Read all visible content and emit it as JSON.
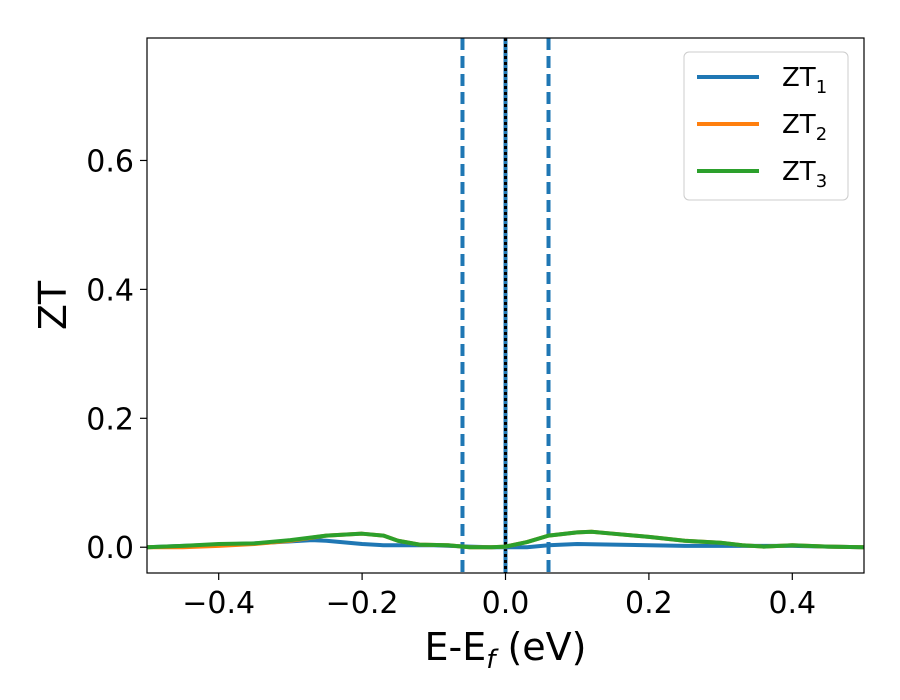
{
  "chart_data": {
    "type": "line",
    "xlabel": "E-E",
    "xlabel_sub": "f",
    "xlabel_unit": " (eV)",
    "ylabel": "ZT",
    "xlim": [
      -0.5,
      0.5
    ],
    "ylim": [
      -0.04,
      0.79
    ],
    "xticks": [
      -0.4,
      -0.2,
      0.0,
      0.2,
      0.4
    ],
    "xtick_labels": [
      "−0.4",
      "−0.2",
      "0.0",
      "0.2",
      "0.4"
    ],
    "yticks": [
      0.0,
      0.2,
      0.4,
      0.6
    ],
    "ytick_labels": [
      "0.0",
      "0.2",
      "0.4",
      "0.6"
    ],
    "grid": false,
    "legend_position": "top-right",
    "vlines": [
      {
        "x": -0.06,
        "style": "dashed",
        "color": "#1f77b4"
      },
      {
        "x": 0.0,
        "style": "solid",
        "color": "#1f77b4"
      },
      {
        "x": 0.0,
        "style": "dotted",
        "color": "#000000"
      },
      {
        "x": 0.06,
        "style": "dashed",
        "color": "#1f77b4"
      }
    ],
    "series": [
      {
        "name": "ZT",
        "sub": "1",
        "color": "#1f77b4",
        "x": [
          -0.5,
          -0.45,
          -0.4,
          -0.35,
          -0.3,
          -0.27,
          -0.25,
          -0.2,
          -0.17,
          -0.15,
          -0.1,
          -0.05,
          -0.02,
          0.0,
          0.03,
          0.06,
          0.1,
          0.15,
          0.2,
          0.25,
          0.3,
          0.35,
          0.4,
          0.45,
          0.5
        ],
        "y": [
          0.0,
          0.002,
          0.004,
          0.006,
          0.009,
          0.011,
          0.01,
          0.005,
          0.003,
          0.003,
          0.003,
          0.001,
          0.0,
          0.0,
          0.0,
          0.003,
          0.005,
          0.004,
          0.003,
          0.002,
          0.002,
          0.002,
          0.002,
          0.001,
          0.0
        ]
      },
      {
        "name": "ZT",
        "sub": "2",
        "color": "#ff7f0e",
        "x": [
          -0.5,
          -0.45,
          -0.4,
          -0.35,
          -0.3,
          -0.25,
          -0.2,
          -0.17,
          -0.15,
          -0.12,
          -0.08,
          -0.05,
          -0.02,
          0.0,
          0.03,
          0.06,
          0.1,
          0.12,
          0.15,
          0.2,
          0.25,
          0.3,
          0.33,
          0.36,
          0.4,
          0.45,
          0.5
        ],
        "y": [
          0.0,
          0.0,
          0.002,
          0.005,
          0.01,
          0.018,
          0.021,
          0.018,
          0.01,
          0.004,
          0.003,
          0.0,
          0.0,
          0.001,
          0.008,
          0.018,
          0.023,
          0.024,
          0.021,
          0.016,
          0.01,
          0.007,
          0.003,
          0.001,
          0.003,
          0.001,
          0.0
        ]
      },
      {
        "name": "ZT",
        "sub": "3",
        "color": "#2ca02c",
        "x": [
          -0.5,
          -0.45,
          -0.4,
          -0.35,
          -0.3,
          -0.25,
          -0.2,
          -0.17,
          -0.15,
          -0.12,
          -0.08,
          -0.05,
          -0.02,
          0.0,
          0.03,
          0.06,
          0.1,
          0.12,
          0.15,
          0.2,
          0.25,
          0.3,
          0.33,
          0.36,
          0.4,
          0.45,
          0.5
        ],
        "y": [
          0.0,
          0.002,
          0.005,
          0.006,
          0.011,
          0.018,
          0.021,
          0.018,
          0.01,
          0.004,
          0.003,
          0.0,
          0.0,
          0.001,
          0.008,
          0.018,
          0.023,
          0.024,
          0.021,
          0.016,
          0.01,
          0.007,
          0.003,
          0.001,
          0.003,
          0.001,
          0.0
        ]
      }
    ]
  }
}
